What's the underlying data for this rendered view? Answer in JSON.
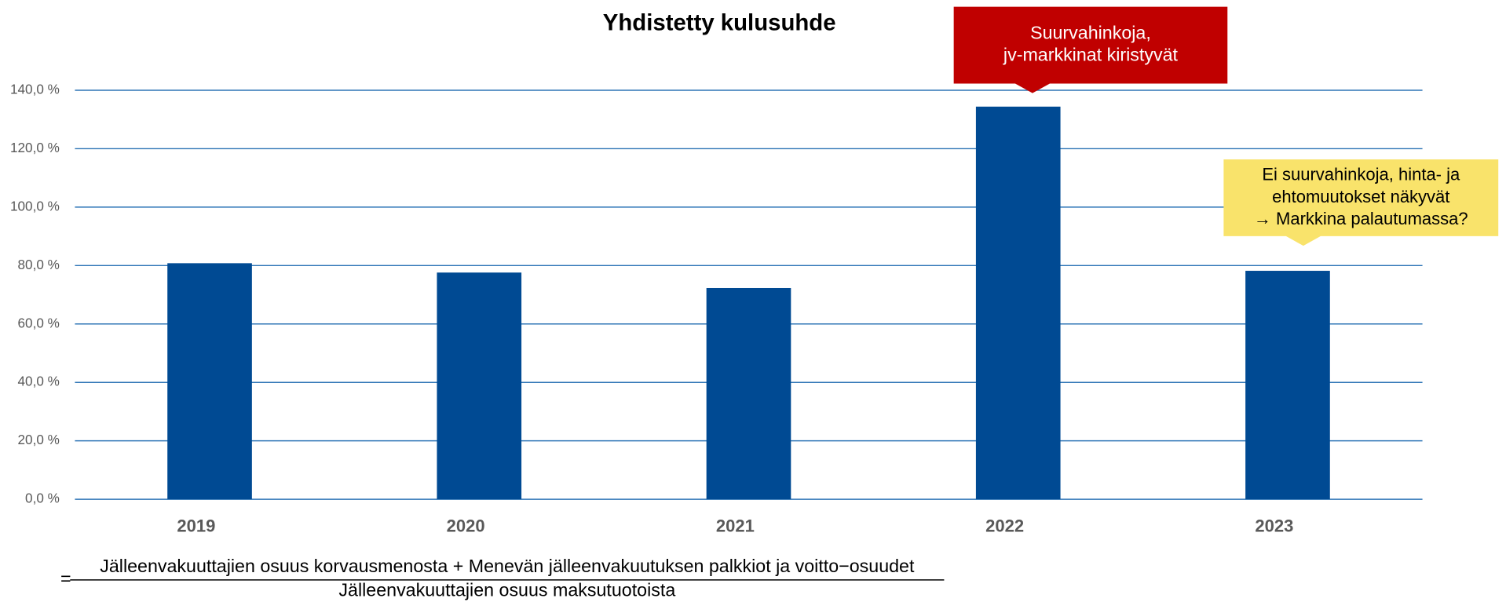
{
  "chart_data": {
    "type": "bar",
    "title": "Yhdistetty kulusuhde",
    "categories": [
      "2019",
      "2020",
      "2021",
      "2022",
      "2023"
    ],
    "values": [
      80.8,
      77.6,
      72.3,
      134.4,
      78.2
    ],
    "color": "#004a93",
    "ylim": [
      0,
      140
    ],
    "yticks": [
      {
        "value": 0,
        "label": "0,0 %"
      },
      {
        "value": 20,
        "label": "20,0 %"
      },
      {
        "value": 40,
        "label": "40,0 %"
      },
      {
        "value": 60,
        "label": "60,0 %"
      },
      {
        "value": 80,
        "label": "80,0 %"
      },
      {
        "value": 100,
        "label": "100,0 %"
      },
      {
        "value": 120,
        "label": "120,0 %"
      },
      {
        "value": 140,
        "label": "140,0 %"
      }
    ],
    "grid": true,
    "annotations": [
      {
        "lines": [
          "Suurvahinkoja,",
          "jv-markkinat kiristyvät"
        ],
        "color": "#c00000"
      },
      {
        "lines": [
          "Ei suurvahinkoja,  hinta- ja",
          "ehtomuutokset näkyvät",
          "→ Markkina palautumassa?"
        ],
        "color": "#f9e36b"
      }
    ],
    "formula": {
      "prefix": "=",
      "numerator": "Jälleenvakuuttajien osuus korvausmenosta + Menevän jälleenvakuutuksen palkkiot ja voitto−osuudet",
      "denominator": "Jälleenvakuuttajien osuus maksutuotoista"
    }
  }
}
